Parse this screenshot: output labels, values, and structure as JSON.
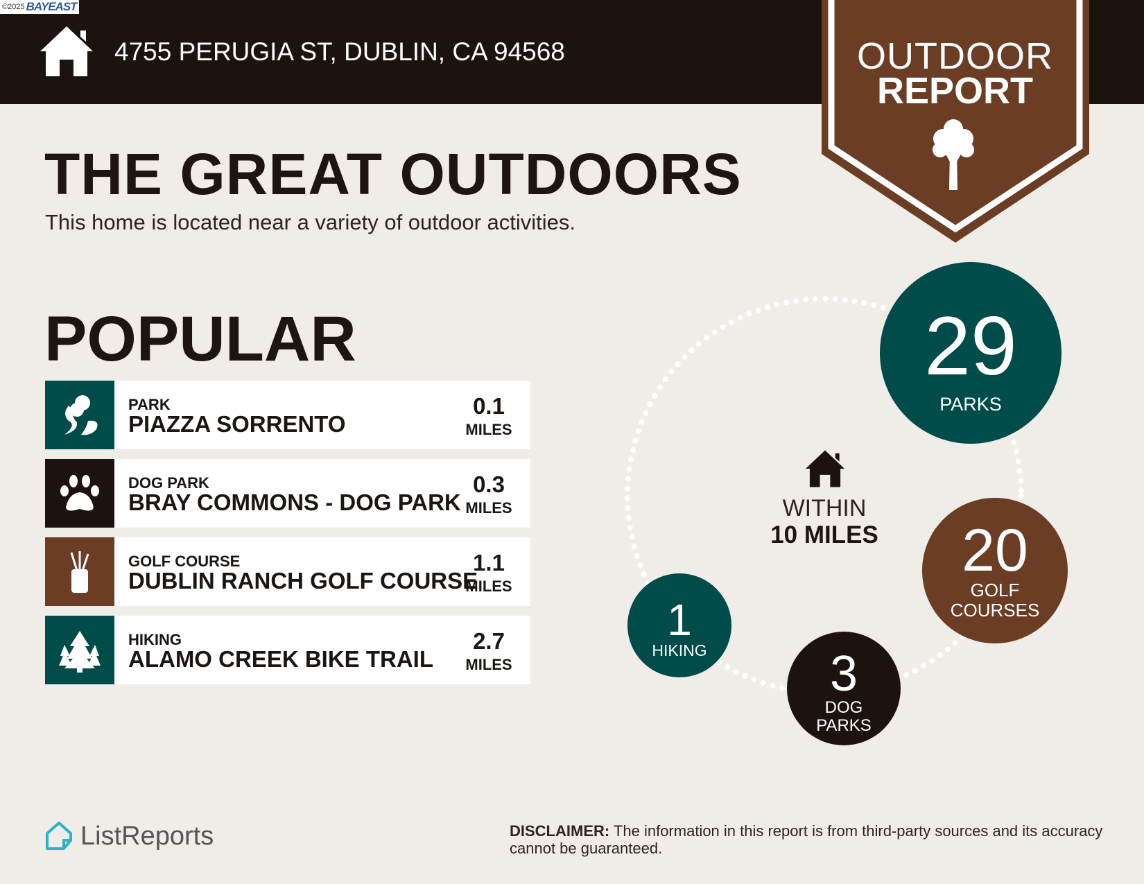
{
  "header": {
    "copyright": "©2025",
    "brand_logo": "BAYEAST",
    "address": "4755 PERUGIA ST, DUBLIN, CA 94568"
  },
  "badge": {
    "line1": "OUTDOOR",
    "line2": "REPORT",
    "icon": "tree-icon"
  },
  "title": "THE GREAT OUTDOORS",
  "subtitle": "This home is located near a variety of outdoor activities.",
  "popular": {
    "heading": "POPULAR",
    "items": [
      {
        "category": "PARK",
        "name": "PIAZZA SORRENTO",
        "distance": "0.1",
        "unit": "MILES",
        "icon": "park-icon",
        "color": "#004c4a"
      },
      {
        "category": "DOG PARK",
        "name": "BRAY COMMONS - DOG PARK",
        "distance": "0.3",
        "unit": "MILES",
        "icon": "paw-icon",
        "color": "#1c1210"
      },
      {
        "category": "GOLF COURSE",
        "name": "DUBLIN RANCH GOLF COURSE",
        "distance": "1.1",
        "unit": "MILES",
        "icon": "golf-bag-icon",
        "color": "#6b3d25"
      },
      {
        "category": "HIKING",
        "name": "ALAMO CREEK BIKE TRAIL",
        "distance": "2.7",
        "unit": "MILES",
        "icon": "pine-trees-icon",
        "color": "#004c4a"
      }
    ]
  },
  "summary": {
    "within_line1": "WITHIN",
    "within_line2": "10 MILES",
    "counts": [
      {
        "count": "29",
        "label": "PARKS",
        "color": "#004c4a"
      },
      {
        "count": "20",
        "label": "GOLF COURSES",
        "color": "#6b3d25"
      },
      {
        "count": "3",
        "label": "DOG PARKS",
        "color": "#1c1210"
      },
      {
        "count": "1",
        "label": "HIKING",
        "color": "#004c4a"
      }
    ]
  },
  "footer": {
    "logo": "ListReports",
    "disclaimer_label": "DISCLAIMER:",
    "disclaimer_text": " The information in this report is from third-party sources and its accuracy cannot be guaranteed."
  },
  "colors": {
    "dark": "#1c1210",
    "brown": "#6b3d25",
    "teal": "#004c4a",
    "background": "#f0ece8",
    "logo_teal": "#2bb5c4"
  }
}
